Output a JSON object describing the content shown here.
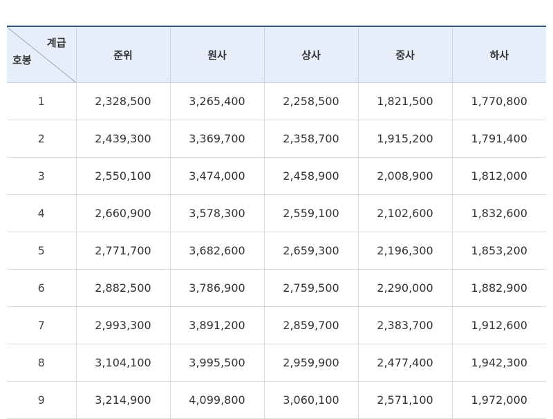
{
  "table": {
    "corner": {
      "top_right": "계급",
      "bottom_left": "호봉"
    },
    "columns": [
      "준위",
      "원사",
      "상사",
      "중사",
      "하사"
    ],
    "rows": [
      {
        "step": "1",
        "values": [
          "2,328,500",
          "3,265,400",
          "2,258,500",
          "1,821,500",
          "1,770,800"
        ]
      },
      {
        "step": "2",
        "values": [
          "2,439,300",
          "3,369,700",
          "2,358,700",
          "1,915,200",
          "1,791,400"
        ]
      },
      {
        "step": "3",
        "values": [
          "2,550,100",
          "3,474,000",
          "2,458,900",
          "2,008,900",
          "1,812,000"
        ]
      },
      {
        "step": "4",
        "values": [
          "2,660,900",
          "3,578,300",
          "2,559,100",
          "2,102,600",
          "1,832,600"
        ]
      },
      {
        "step": "5",
        "values": [
          "2,771,700",
          "3,682,600",
          "2,659,300",
          "2,196,300",
          "1,853,200"
        ]
      },
      {
        "step": "6",
        "values": [
          "2,882,500",
          "3,786,900",
          "2,759,500",
          "2,290,000",
          "1,882,900"
        ]
      },
      {
        "step": "7",
        "values": [
          "2,993,300",
          "3,891,200",
          "2,859,700",
          "2,383,700",
          "1,912,600"
        ]
      },
      {
        "step": "8",
        "values": [
          "3,104,100",
          "3,995,500",
          "2,959,900",
          "2,477,400",
          "1,942,300"
        ]
      },
      {
        "step": "9",
        "values": [
          "3,214,900",
          "4,099,800",
          "3,060,100",
          "2,571,100",
          "1,972,000"
        ]
      }
    ]
  }
}
